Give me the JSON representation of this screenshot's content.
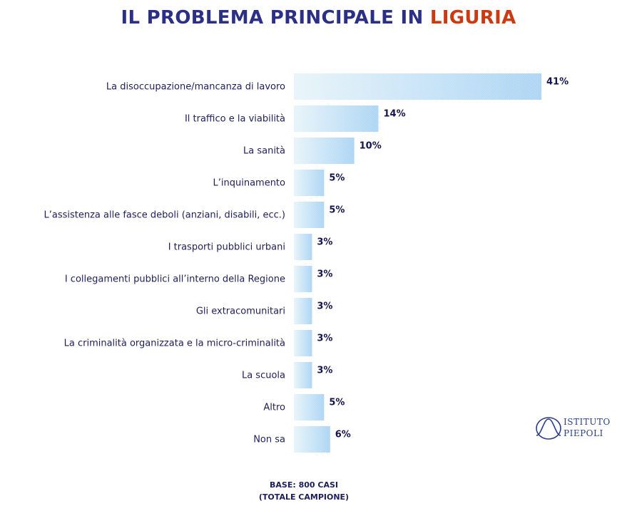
{
  "title": {
    "main": "IL PROBLEMA PRINCIPALE IN ",
    "accent": "LIGURIA"
  },
  "colors": {
    "title": "#2b2f86",
    "accent": "#cc3a12",
    "bar_light": "#e4f3f8",
    "bar_dark": "#9fcef5",
    "text": "#1e1e5a"
  },
  "chart_data": {
    "type": "bar",
    "orientation": "horizontal",
    "categories": [
      "La disoccupazione/mancanza di lavoro",
      "Il traffico e la viabilità",
      "La sanità",
      "L’inquinamento",
      "L’assistenza alle fasce deboli (anziani, disabili, ecc.)",
      "I trasporti pubblici urbani",
      "I collegamenti pubblici all’interno della Regione",
      "Gli extracomunitari",
      "La criminalità organizzata e la micro-criminalità",
      "La scuola",
      "Altro",
      "Non sa"
    ],
    "values": [
      41,
      14,
      10,
      5,
      5,
      3,
      3,
      3,
      3,
      3,
      5,
      6
    ],
    "value_labels": [
      "41%",
      "14%",
      "10%",
      "5%",
      "5%",
      "3%",
      "3%",
      "3%",
      "3%",
      "3%",
      "5%",
      "6%"
    ],
    "unit": "%",
    "xlabel": "",
    "ylabel": "",
    "xlim": [
      0,
      41
    ],
    "grid": false,
    "legend": "none"
  },
  "footnote": {
    "line1": "BASE: 800 CASI",
    "line2": "(TOTALE CAMPIONE)"
  },
  "logo": {
    "line1": "ISTITUTO",
    "line2": "PIEPOLI"
  }
}
